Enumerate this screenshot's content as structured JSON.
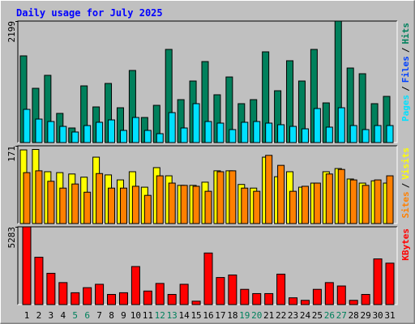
{
  "title": "Daily usage for July 2025",
  "categories": [
    1,
    2,
    3,
    4,
    5,
    6,
    7,
    8,
    9,
    10,
    11,
    12,
    13,
    14,
    15,
    16,
    17,
    18,
    19,
    20,
    21,
    22,
    23,
    24,
    25,
    26,
    27,
    28,
    29,
    30,
    31
  ],
  "category_colors": [
    "#000000",
    "#000000",
    "#000000",
    "#000000",
    "#00805c",
    "#00805c",
    "#000000",
    "#000000",
    "#000000",
    "#000000",
    "#000000",
    "#00805c",
    "#00805c",
    "#000000",
    "#000000",
    "#000000",
    "#000000",
    "#000000",
    "#00805c",
    "#00805c",
    "#000000",
    "#000000",
    "#000000",
    "#000000",
    "#000000",
    "#00805c",
    "#00805c",
    "#000000",
    "#000000",
    "#000000",
    "#000000"
  ],
  "chart_data": [
    {
      "type": "bar",
      "ylim": [
        0,
        2199
      ],
      "yticks": [
        2199
      ],
      "legend": [
        "Pages",
        "/",
        "Files",
        "/",
        "Hits"
      ],
      "legend_colors": [
        "#00e0ff",
        "#000000",
        "#0040ff",
        "#000000",
        "#00805c"
      ],
      "series": [
        {
          "color": "#00805c",
          "values": [
            1569,
            982,
            1217,
            528,
            264,
            1026,
            645,
            1070,
            630,
            1305,
            454,
            674,
            1686,
            777,
            1114,
            1466,
            865,
            1187,
            704,
            777,
            1642,
            938,
            1481,
            1114,
            1686,
            718,
            2199,
            1349,
            1246,
            704,
            836
          ]
        },
        {
          "color": "#00e0ff",
          "values": [
            601,
            425,
            381,
            293,
            191,
            308,
            367,
            410,
            220,
            454,
            220,
            161,
            542,
            264,
            704,
            381,
            352,
            235,
            367,
            381,
            352,
            323,
            293,
            249,
            616,
            279,
            630,
            308,
            235,
            308,
            308
          ]
        }
      ]
    },
    {
      "type": "bar",
      "ylim": [
        0,
        171
      ],
      "yticks": [
        171
      ],
      "legend": [
        "Sites",
        "/",
        "Visits"
      ],
      "legend_colors": [
        "#ff8000",
        "#000000",
        "#ffff00"
      ],
      "series": [
        {
          "color": "#ffff00",
          "values": [
            162,
            163,
            114,
            112,
            109,
            102,
            146,
            107,
            96,
            114,
            80,
            123,
            105,
            84,
            84,
            91,
            116,
            116,
            86,
            78,
            146,
            103,
            114,
            80,
            89,
            114,
            121,
            98,
            89,
            94,
            89
          ]
        },
        {
          "color": "#ff8000",
          "values": [
            112,
            116,
            93,
            78,
            87,
            69,
            110,
            78,
            78,
            82,
            62,
            105,
            89,
            84,
            82,
            71,
            114,
            116,
            78,
            71,
            150,
            128,
            71,
            82,
            89,
            109,
            119,
            96,
            84,
            96,
            105
          ]
        }
      ]
    },
    {
      "type": "bar",
      "ylim": [
        0,
        5283
      ],
      "yticks": [
        5283
      ],
      "legend": [
        "KBytes"
      ],
      "legend_colors": [
        "#ff0000"
      ],
      "series": [
        {
          "color": "#ff0000",
          "values": [
            5283,
            3215,
            2124,
            1493,
            804,
            1148,
            1378,
            689,
            804,
            2584,
            919,
            1436,
            689,
            1378,
            230,
            3503,
            1838,
            2010,
            1034,
            746,
            746,
            2067,
            459,
            287,
            1034,
            1493,
            1263,
            287,
            689,
            3101,
            2814
          ]
        }
      ]
    }
  ]
}
